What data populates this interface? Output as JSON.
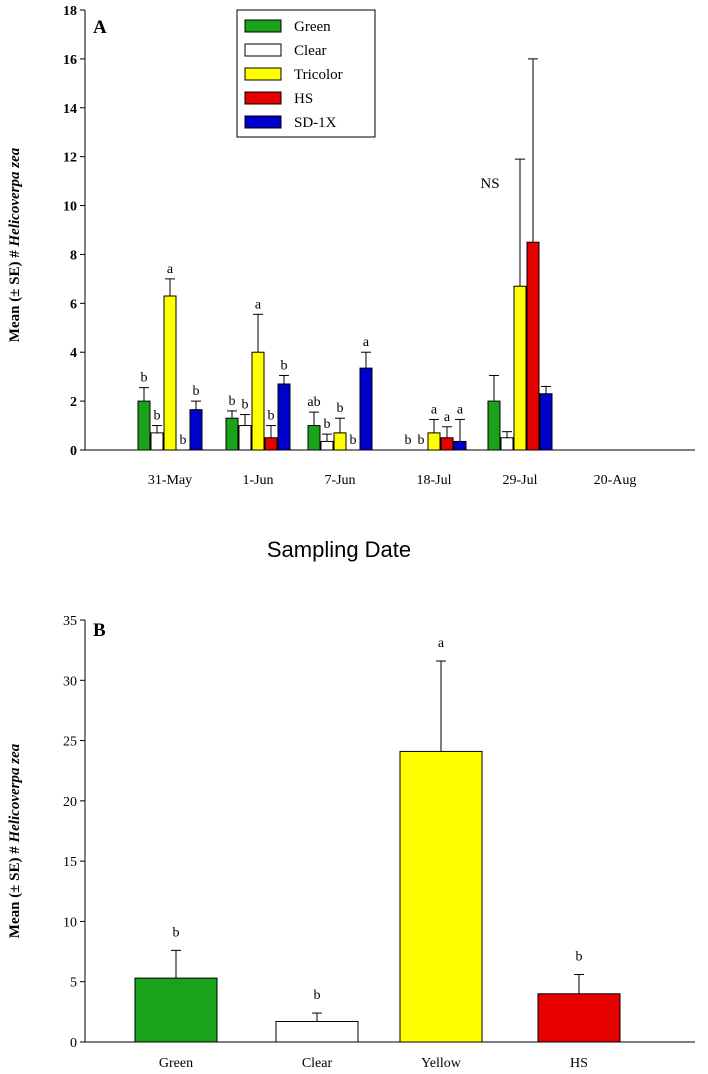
{
  "chart_data": [
    {
      "type": "bar",
      "panel_label": "A",
      "categories": [
        "31-May",
        "1-Jun",
        "7-Jun",
        "18-Jul",
        "29-Jul",
        "20-Aug"
      ],
      "xlabel": "Sampling Date",
      "ylabel_prefix": "Mean (± SE) # ",
      "ylabel_species": "Helicoverpa zea",
      "ylim": [
        0,
        18
      ],
      "yticks": [
        0,
        2,
        4,
        6,
        8,
        10,
        12,
        14,
        16,
        18
      ],
      "legend_position": "top-center",
      "annotations": [
        {
          "text": "NS",
          "category": "29-Jul"
        }
      ],
      "series": [
        {
          "name": "Green",
          "color": "#1aa31a",
          "values": [
            2.0,
            1.3,
            1.0,
            0,
            2.0,
            0
          ],
          "errors": [
            0.55,
            0.3,
            0.55,
            0,
            1.05,
            0
          ],
          "letters": [
            "b",
            "b",
            "ab",
            "b",
            "",
            ""
          ]
        },
        {
          "name": "Clear",
          "color": "#ffffff",
          "values": [
            0.7,
            1.0,
            0.35,
            0,
            0.5,
            0
          ],
          "errors": [
            0.3,
            0.45,
            0.3,
            0,
            0.25,
            0
          ],
          "letters": [
            "b",
            "b",
            "b",
            "b",
            "",
            ""
          ]
        },
        {
          "name": "Tricolor",
          "color": "#ffff00",
          "values": [
            6.3,
            4.0,
            0.7,
            0.7,
            6.7,
            0
          ],
          "errors": [
            0.7,
            1.55,
            0.6,
            0.55,
            5.2,
            0
          ],
          "letters": [
            "a",
            "a",
            "b",
            "a",
            "",
            ""
          ]
        },
        {
          "name": "HS",
          "color": "#e60000",
          "values": [
            0,
            0.5,
            0,
            0.5,
            8.5,
            0
          ],
          "errors": [
            0,
            0.5,
            0,
            0.45,
            7.5,
            0
          ],
          "letters": [
            "b",
            "b",
            "b",
            "a",
            "",
            ""
          ]
        },
        {
          "name": "SD-1X",
          "color": "#0000cc",
          "values": [
            1.65,
            2.7,
            3.35,
            0.35,
            2.3,
            0
          ],
          "errors": [
            0.35,
            0.35,
            0.65,
            0.9,
            0.3,
            0
          ],
          "letters": [
            "b",
            "b",
            "a",
            "a",
            "",
            ""
          ]
        }
      ]
    },
    {
      "type": "bar",
      "panel_label": "B",
      "categories": [
        "Green",
        "Clear",
        "Yellow",
        "HS"
      ],
      "colors": [
        "#1aa31a",
        "#ffffff",
        "#ffff00",
        "#e60000"
      ],
      "values": [
        5.3,
        1.7,
        24.1,
        4.0
      ],
      "errors": [
        2.3,
        0.7,
        7.5,
        1.6
      ],
      "letters": [
        "b",
        "b",
        "a",
        "b"
      ],
      "ylabel_prefix": "Mean (± SE) # ",
      "ylabel_species": "Helicoverpa zea",
      "ylim": [
        0,
        35
      ],
      "yticks": [
        0,
        5,
        10,
        15,
        20,
        25,
        30,
        35
      ]
    }
  ]
}
